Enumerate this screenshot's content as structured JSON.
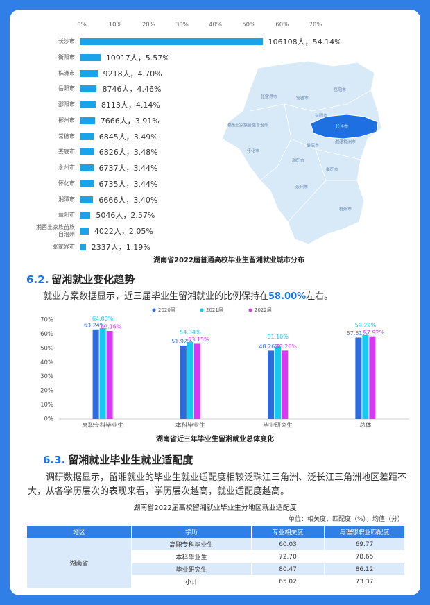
{
  "chart_data": [
    {
      "type": "bar",
      "orientation": "horizontal",
      "title": "湖南省2022届普通高校毕业生留湘就业城市分布",
      "categories": [
        "长沙市",
        "衡阳市",
        "株洲市",
        "岳阳市",
        "邵阳市",
        "郴州市",
        "常德市",
        "娄底市",
        "永州市",
        "怀化市",
        "湘潭市",
        "益阳市",
        "湘西土家族苗族自治州",
        "张家界市"
      ],
      "values": [
        54.14,
        5.57,
        4.7,
        4.46,
        4.14,
        3.91,
        3.49,
        3.48,
        3.44,
        3.44,
        3.4,
        2.57,
        2.05,
        1.19
      ],
      "value_labels": [
        "106108人，54.14%",
        "10917人，5.57%",
        "9218人，4.70%",
        "8746人，4.46%",
        "8113人，4.14%",
        "7666人，3.91%",
        "6845人，3.49%",
        "6826人，3.48%",
        "6737人，3.44%",
        "6735人，3.44%",
        "6666人，3.40%",
        "5046人，2.57%",
        "4022人，2.05%",
        "2337人，1.19%"
      ],
      "color": "#1aa3e8",
      "xlim": [
        0,
        70
      ],
      "xticks": [
        {
          "value": 0,
          "label": "0%"
        },
        {
          "value": 10,
          "label": "10%"
        },
        {
          "value": 20,
          "label": "20%"
        },
        {
          "value": 30,
          "label": "30%"
        },
        {
          "value": 40,
          "label": "40%"
        },
        {
          "value": 50,
          "label": "50%"
        },
        {
          "value": 60,
          "label": "60%"
        },
        {
          "value": 70,
          "label": "70%"
        }
      ]
    },
    {
      "type": "bar",
      "title": "湖南省近三年毕业生留湘就业总体变化",
      "categories": [
        "高职专科毕业生",
        "本科毕业生",
        "毕业研究生",
        "总体"
      ],
      "series": [
        {
          "name": "2020届",
          "color": "#2f6bdc",
          "values": [
            63.24,
            51.92,
            48.26,
            57.51
          ],
          "value_labels": [
            "63.24%",
            "51.92%",
            "48.26%",
            "57.51%"
          ]
        },
        {
          "name": "2021届",
          "color": "#17c8ef",
          "values": [
            64.0,
            54.34,
            51.1,
            59.29
          ],
          "value_labels": [
            "64.00%",
            "54.34%",
            "51.10%",
            "59.29%"
          ]
        },
        {
          "name": "2022届",
          "color": "#d63af0",
          "values": [
            62.16,
            53.15,
            48.26,
            57.92
          ],
          "value_labels": [
            "62.16%",
            "53.15%",
            "48.26%",
            "57.92%"
          ]
        }
      ],
      "ylim": [
        0,
        70
      ],
      "yticks": [
        {
          "value": 0,
          "label": "0%"
        },
        {
          "value": 10,
          "label": "10%"
        },
        {
          "value": 20,
          "label": "20%"
        },
        {
          "value": 30,
          "label": "30%"
        },
        {
          "value": 40,
          "label": "40%"
        },
        {
          "value": 50,
          "label": "50%"
        },
        {
          "value": 60,
          "label": "60%"
        },
        {
          "value": 70,
          "label": "70%"
        }
      ],
      "legend": "top",
      "grid": false
    }
  ],
  "map": {
    "labels": [
      "岳阳市",
      "张家界市",
      "常德市",
      "益阳市",
      "湘西土家族苗族自治州",
      "长沙市",
      "湘潭株洲市",
      "娄底市",
      "怀化市",
      "邵阳市",
      "衡阳市",
      "永州市",
      "郴州市"
    ]
  },
  "sections": [
    {
      "number": "6.2.",
      "title": "留湘就业变化趋势",
      "paragraph": [
        "就业方案数据显示，近三届毕业生留湘就业的比例保持在",
        "58.00%",
        "左右。"
      ]
    },
    {
      "number": "6.3.",
      "title": "留湘就业毕业生就业适配度",
      "paragraph": [
        "调研数据显示，留湘就业的毕业生就业适配度相较泛珠江三角洲、泛长江三角洲地区差距不大，从各学历层次的表现来看，学历层次越高，就业适配度越高。"
      ]
    }
  ],
  "table": {
    "title": "湖南省2022届高校留湘就业毕业生分地区就业适配度",
    "unit": "单位：相关度、匹配度（%），均值（分）",
    "header": [
      "地区",
      "学历",
      "专业相关度",
      "与理想职业匹配度"
    ],
    "region": "湖南省",
    "rows": [
      [
        "高职专科毕业生",
        "60.03",
        "69.77"
      ],
      [
        "本科毕业生",
        "72.70",
        "78.65"
      ],
      [
        "毕业研究生",
        "80.47",
        "86.12"
      ],
      [
        "小计",
        "65.02",
        "73.37"
      ]
    ]
  }
}
